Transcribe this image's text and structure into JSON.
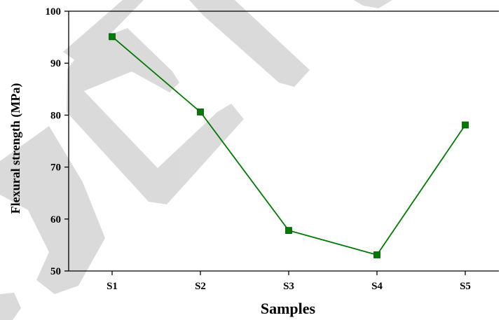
{
  "chart_data": {
    "type": "line",
    "title": "",
    "xlabel": "Samples",
    "ylabel": "Flexural strength (MPa)",
    "categories": [
      "S1",
      "S2",
      "S3",
      "S4",
      "S5"
    ],
    "series": [
      {
        "values": [
          95.1,
          80.6,
          57.8,
          53.1,
          78.1
        ]
      }
    ],
    "ylim": [
      50,
      100
    ],
    "yticks": [
      50,
      60,
      70,
      80,
      90,
      100
    ],
    "grid": false,
    "colors": {
      "series": "#007a00",
      "marker": "#007a00",
      "axis": "#000000",
      "watermark": "#d9d9d9"
    }
  }
}
